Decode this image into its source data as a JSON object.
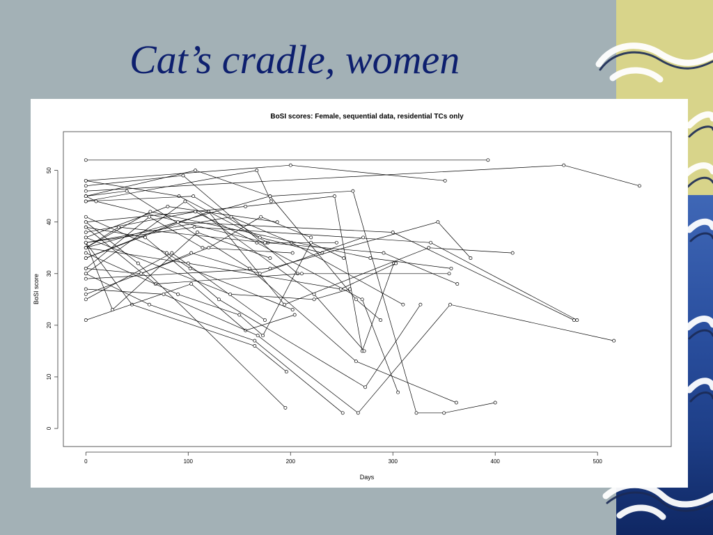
{
  "slide": {
    "title": "Cat’s cradle, women"
  },
  "decoration": {
    "background": "#a3b1b6",
    "title_color": "#0d1f6e",
    "right_band_top": "#d8d48a",
    "right_band_bottom": "#2a4f9f",
    "right_band_art": "wave-icon"
  },
  "chart_data": {
    "type": "line",
    "title": "BoSI scores: Female, sequential data, residential TCs only",
    "xlabel": "Days",
    "ylabel": "BoSI score",
    "xlim": [
      -22,
      572
    ],
    "ylim": [
      -3.5,
      57.5
    ],
    "xticks": [
      0,
      100,
      200,
      300,
      400,
      500
    ],
    "yticks": [
      0,
      10,
      20,
      30,
      40,
      50
    ],
    "grid": false,
    "marker": "open-circle",
    "line_color": "#000000",
    "series": [
      {
        "x": [
          0,
          393
        ],
        "y": [
          52,
          52
        ]
      },
      {
        "x": [
          0,
          200,
          351
        ],
        "y": [
          48,
          51,
          48
        ]
      },
      {
        "x": [
          0,
          467,
          541
        ],
        "y": [
          46,
          51,
          47
        ]
      },
      {
        "x": [
          0,
          107,
          180,
          264,
          288
        ],
        "y": [
          45,
          50,
          45,
          25,
          21
        ]
      },
      {
        "x": [
          0,
          167,
          181
        ],
        "y": [
          44,
          50,
          44
        ]
      },
      {
        "x": [
          0,
          91,
          178
        ],
        "y": [
          48,
          45,
          36
        ]
      },
      {
        "x": [
          0,
          95,
          207
        ],
        "y": [
          47,
          49,
          30
        ]
      },
      {
        "x": [
          0,
          105,
          170,
          231
        ],
        "y": [
          44,
          45,
          37,
          34
        ]
      },
      {
        "x": [
          0,
          40,
          160,
          264,
          362
        ],
        "y": [
          45,
          46,
          31,
          13,
          5
        ]
      },
      {
        "x": [
          0,
          10,
          176,
          291,
          363
        ],
        "y": [
          45,
          44,
          36,
          34,
          28
        ]
      },
      {
        "x": [
          0,
          156,
          243,
          270,
          301
        ],
        "y": [
          40,
          43,
          45,
          15,
          32
        ]
      },
      {
        "x": [
          0,
          180,
          261,
          323,
          350,
          400
        ],
        "y": [
          35,
          45,
          46,
          3,
          3,
          5
        ]
      },
      {
        "x": [
          0,
          142,
          201,
          310
        ],
        "y": [
          36,
          41,
          36,
          24
        ]
      },
      {
        "x": [
          0,
          107,
          167,
          270,
          305
        ],
        "y": [
          38,
          42,
          36,
          25,
          7
        ]
      },
      {
        "x": [
          0,
          120,
          194,
          335,
          417
        ],
        "y": [
          33,
          42,
          24,
          35,
          34
        ]
      },
      {
        "x": [
          0,
          32,
          175,
          245
        ],
        "y": [
          35,
          39,
          36,
          36
        ]
      },
      {
        "x": [
          0,
          80,
          187
        ],
        "y": [
          37,
          43,
          40
        ]
      },
      {
        "x": [
          0,
          62,
          114,
          202
        ],
        "y": [
          31,
          41,
          35,
          34
        ]
      },
      {
        "x": [
          0,
          63,
          278,
          357
        ],
        "y": [
          35,
          42,
          33,
          31
        ]
      },
      {
        "x": [
          0,
          90,
          300,
          477
        ],
        "y": [
          33,
          40,
          38,
          21
        ]
      },
      {
        "x": [
          0,
          106,
          337,
          480
        ],
        "y": [
          36,
          39,
          36,
          21
        ]
      },
      {
        "x": [
          0,
          97,
          223,
          272
        ],
        "y": [
          30,
          44,
          26,
          15
        ]
      },
      {
        "x": [
          0,
          120,
          171,
          220
        ],
        "y": [
          26,
          35,
          41,
          37
        ]
      },
      {
        "x": [
          0,
          45,
          165,
          196
        ],
        "y": [
          36,
          24,
          16,
          11
        ]
      },
      {
        "x": [
          0,
          62,
          165,
          251
        ],
        "y": [
          30,
          24,
          17,
          3
        ]
      },
      {
        "x": [
          0,
          51,
          195
        ],
        "y": [
          40,
          32,
          4
        ]
      },
      {
        "x": [
          0,
          84,
          175
        ],
        "y": [
          25,
          34,
          21
        ]
      },
      {
        "x": [
          0,
          180,
          344,
          376
        ],
        "y": [
          29,
          31,
          40,
          33
        ]
      },
      {
        "x": [
          0,
          141,
          223,
          258
        ],
        "y": [
          37,
          26,
          25,
          27
        ]
      },
      {
        "x": [
          0,
          100,
          249,
          303
        ],
        "y": [
          35,
          32,
          27,
          32
        ]
      },
      {
        "x": [
          0,
          68,
          211,
          355
        ],
        "y": [
          39,
          28,
          30,
          30
        ]
      },
      {
        "x": [
          0,
          58,
          130,
          273,
          327
        ],
        "y": [
          39,
          37,
          25,
          8,
          24
        ]
      },
      {
        "x": [
          0,
          103,
          156,
          204
        ],
        "y": [
          21,
          28,
          19,
          22
        ]
      },
      {
        "x": [
          0,
          76,
          168,
          266,
          356,
          516
        ],
        "y": [
          27,
          26,
          18,
          3,
          24,
          17
        ]
      },
      {
        "x": [
          0,
          54,
          103,
          170,
          271
        ],
        "y": [
          31,
          30,
          34,
          30,
          37
        ]
      },
      {
        "x": [
          0,
          90,
          150,
          173,
          220,
          252
        ],
        "y": [
          34,
          26,
          22,
          18,
          36,
          33
        ]
      },
      {
        "x": [
          0,
          79,
          102,
          202
        ],
        "y": [
          41,
          34,
          31,
          23
        ]
      },
      {
        "x": [
          0,
          26,
          109,
          180
        ],
        "y": [
          36,
          23,
          38,
          33
        ]
      }
    ]
  }
}
